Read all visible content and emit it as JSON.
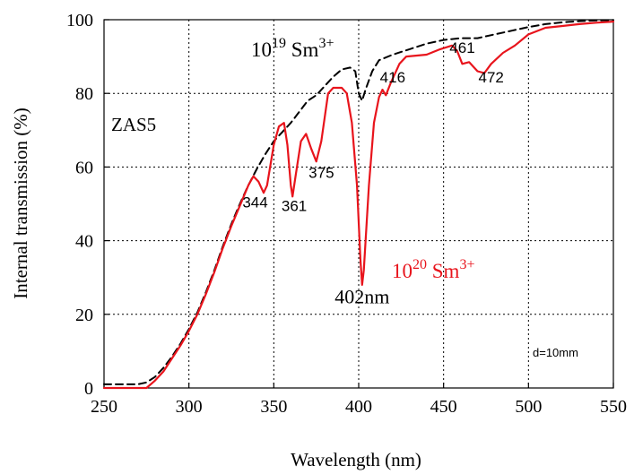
{
  "chart_data": {
    "type": "line",
    "xlabel": "Wavelength (nm)",
    "ylabel": "Internal transmission (%)",
    "xlim": [
      250,
      550
    ],
    "ylim": [
      0,
      100
    ],
    "xticks": [
      250,
      300,
      350,
      400,
      450,
      500,
      550
    ],
    "yticks": [
      0,
      20,
      40,
      60,
      80,
      100
    ],
    "grid": true,
    "sample_label": "ZAS5",
    "thickness_note": "d=10mm",
    "series": [
      {
        "name": "10^19 Sm^3+",
        "label": {
          "base": "10",
          "exp": "19",
          "ion": " Sm",
          "charge": "3+"
        },
        "color": "#000000",
        "dash": "8 5",
        "points": [
          [
            250,
            1
          ],
          [
            270,
            1
          ],
          [
            275,
            1.5
          ],
          [
            280,
            3
          ],
          [
            285,
            5.5
          ],
          [
            290,
            8.5
          ],
          [
            295,
            12
          ],
          [
            300,
            16
          ],
          [
            305,
            20.5
          ],
          [
            310,
            26
          ],
          [
            315,
            32
          ],
          [
            320,
            38.5
          ],
          [
            325,
            44.5
          ],
          [
            330,
            50
          ],
          [
            335,
            55
          ],
          [
            340,
            59.5
          ],
          [
            345,
            63.5
          ],
          [
            350,
            67
          ],
          [
            355,
            69.5
          ],
          [
            360,
            72
          ],
          [
            365,
            75
          ],
          [
            370,
            78
          ],
          [
            375,
            79.5
          ],
          [
            380,
            82
          ],
          [
            385,
            84.5
          ],
          [
            390,
            86.5
          ],
          [
            395,
            87
          ],
          [
            398,
            86
          ],
          [
            400,
            80
          ],
          [
            402,
            78
          ],
          [
            404,
            81
          ],
          [
            408,
            86
          ],
          [
            412,
            89
          ],
          [
            420,
            90.5
          ],
          [
            430,
            92
          ],
          [
            440,
            93.5
          ],
          [
            450,
            94.5
          ],
          [
            460,
            95
          ],
          [
            470,
            95
          ],
          [
            480,
            96
          ],
          [
            490,
            97
          ],
          [
            500,
            98
          ],
          [
            510,
            98.8
          ],
          [
            520,
            99.3
          ],
          [
            530,
            99.6
          ],
          [
            540,
            99.8
          ],
          [
            550,
            99.9
          ]
        ]
      },
      {
        "name": "10^20 Sm^3+",
        "label": {
          "base": "10",
          "exp": "20",
          "ion": " Sm",
          "charge": "3+"
        },
        "color": "#e8141c",
        "dash": "",
        "points": [
          [
            250,
            0
          ],
          [
            275,
            0
          ],
          [
            280,
            2
          ],
          [
            285,
            4.5
          ],
          [
            290,
            8
          ],
          [
            295,
            11.5
          ],
          [
            300,
            15.5
          ],
          [
            305,
            20
          ],
          [
            310,
            25.5
          ],
          [
            315,
            31.5
          ],
          [
            320,
            38
          ],
          [
            325,
            44
          ],
          [
            330,
            49.5
          ],
          [
            335,
            55
          ],
          [
            338,
            57.5
          ],
          [
            341,
            56
          ],
          [
            344,
            53
          ],
          [
            346,
            55
          ],
          [
            350,
            66
          ],
          [
            353,
            71
          ],
          [
            356,
            72
          ],
          [
            358,
            66
          ],
          [
            360,
            55
          ],
          [
            361,
            52
          ],
          [
            363,
            58
          ],
          [
            366,
            67
          ],
          [
            369,
            69
          ],
          [
            372,
            65
          ],
          [
            375,
            61.5
          ],
          [
            378,
            67
          ],
          [
            382,
            80
          ],
          [
            385,
            81.5
          ],
          [
            390,
            81.5
          ],
          [
            393,
            80
          ],
          [
            396,
            72
          ],
          [
            399,
            55
          ],
          [
            401,
            35
          ],
          [
            402,
            28
          ],
          [
            403,
            32
          ],
          [
            406,
            55
          ],
          [
            409,
            72
          ],
          [
            412,
            79
          ],
          [
            414,
            81
          ],
          [
            416,
            79.5
          ],
          [
            419,
            83
          ],
          [
            424,
            88
          ],
          [
            428,
            90
          ],
          [
            440,
            90.5
          ],
          [
            448,
            92
          ],
          [
            455,
            93
          ],
          [
            458,
            91.5
          ],
          [
            461,
            88
          ],
          [
            465,
            88.5
          ],
          [
            470,
            86
          ],
          [
            474,
            85.5
          ],
          [
            478,
            88
          ],
          [
            485,
            91
          ],
          [
            492,
            93
          ],
          [
            500,
            96
          ],
          [
            510,
            97.8
          ],
          [
            520,
            98.3
          ],
          [
            530,
            98.8
          ],
          [
            540,
            99.2
          ],
          [
            550,
            99.5
          ]
        ]
      }
    ],
    "annotations": [
      {
        "text": "344",
        "x": 339,
        "y": 49
      },
      {
        "text": "361",
        "x": 362,
        "y": 48
      },
      {
        "text": "375",
        "x": 378,
        "y": 57
      },
      {
        "text": "402nm",
        "x": 402,
        "y": 23
      },
      {
        "text": "416",
        "x": 420,
        "y": 83
      },
      {
        "text": "461",
        "x": 461,
        "y": 91
      },
      {
        "text": "472",
        "x": 478,
        "y": 83
      }
    ]
  }
}
